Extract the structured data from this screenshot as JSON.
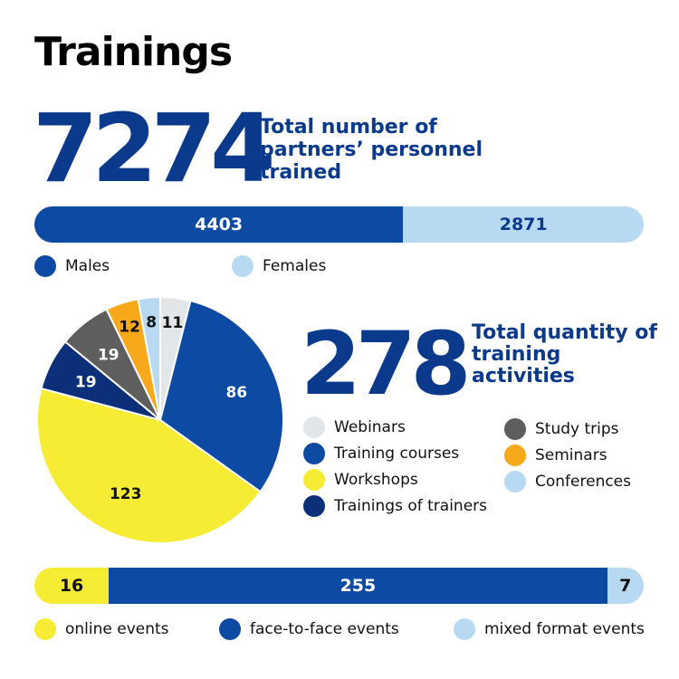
{
  "title": "Trainings",
  "personnel": {
    "total": "7274",
    "description": "Total number of partners’ personnel trained",
    "colors": {
      "males": "#0d4aa3",
      "females": "#b7d9f2"
    }
  },
  "activities": {
    "total": "278",
    "description": "Total quantity of training activities"
  },
  "chart_data": [
    {
      "type": "bar",
      "orientation": "horizontal-stacked",
      "series": [
        {
          "name": "Males",
          "value": 4403,
          "label": "4403",
          "color": "#0d4aa3"
        },
        {
          "name": "Females",
          "value": 2871,
          "label": "2871",
          "color": "#b7d9f2"
        }
      ],
      "legend_placement": "bottom-left"
    },
    {
      "type": "pie",
      "slices": [
        {
          "name": "Webinars",
          "value": 11,
          "label": "11",
          "color": "#e3e6e9"
        },
        {
          "name": "Training courses",
          "value": 86,
          "label": "86",
          "color": "#0d4aa3"
        },
        {
          "name": "Workshops",
          "value": 123,
          "label": "123",
          "color": "#f5ec33"
        },
        {
          "name": "Trainings of trainers",
          "value": 19,
          "label": "19",
          "color": "#0b2f78"
        },
        {
          "name": "Study trips",
          "value": 19,
          "label": "19",
          "color": "#5e5e5e"
        },
        {
          "name": "Seminars",
          "value": 12,
          "label": "12",
          "color": "#f7a81b"
        },
        {
          "name": "Conferences",
          "value": 8,
          "label": "8",
          "color": "#b7d9f2"
        }
      ],
      "legend_placement": "right"
    },
    {
      "type": "bar",
      "orientation": "horizontal-stacked",
      "series": [
        {
          "name": "online events",
          "value": 16,
          "label": "16",
          "color": "#f5ec33"
        },
        {
          "name": "face-to-face events",
          "value": 255,
          "label": "255",
          "color": "#0d4aa3"
        },
        {
          "name": "mixed format events",
          "value": 7,
          "label": "7",
          "color": "#b7d9f2"
        }
      ],
      "legend_placement": "bottom"
    }
  ]
}
